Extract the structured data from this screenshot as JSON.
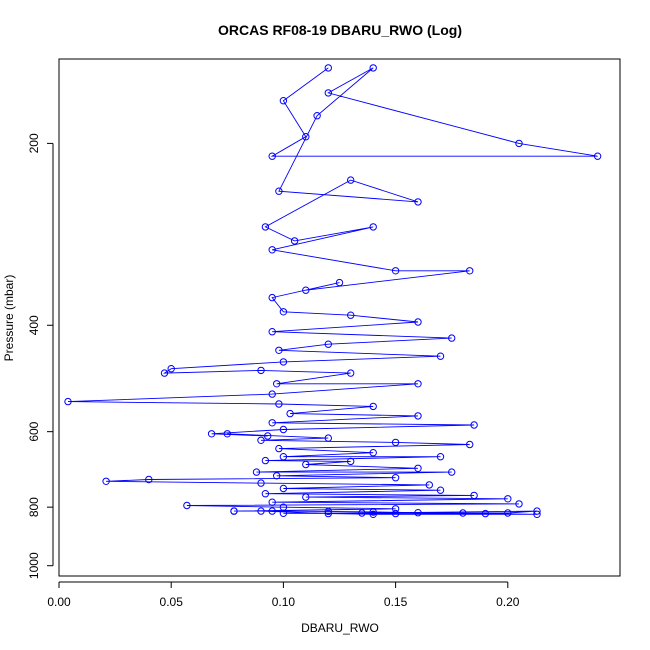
{
  "chart_data": {
    "type": "line",
    "title": "ORCAS RF08-19 DBARU_RWO (Log)",
    "xlabel": "DBARU_RWO",
    "ylabel": "Pressure (mbar)",
    "xlim": [
      0.0,
      0.25
    ],
    "ylim": [
      1040,
      145
    ],
    "y_inverted": true,
    "y_scale": "log",
    "grid": false,
    "legend": "none",
    "marker": "open-circle",
    "series_color": "#0000ff",
    "xticks": [
      0.0,
      0.05,
      0.1,
      0.15,
      0.2
    ],
    "xtick_labels": [
      "0.00",
      "0.05",
      "0.10",
      "0.15",
      "0.20"
    ],
    "yticks": [
      200,
      400,
      600,
      800,
      1000
    ],
    "ytick_labels": [
      "200",
      "400",
      "600",
      "800",
      "1000"
    ],
    "series": [
      {
        "values": [
          [
            0.12,
            150
          ],
          [
            0.1,
            170
          ],
          [
            0.11,
            195
          ],
          [
            0.095,
            210
          ],
          [
            0.24,
            210
          ],
          [
            0.205,
            200
          ],
          [
            0.12,
            165
          ],
          [
            0.14,
            150
          ],
          [
            0.115,
            180
          ],
          [
            0.098,
            240
          ],
          [
            0.16,
            250
          ],
          [
            0.13,
            230
          ],
          [
            0.092,
            275
          ],
          [
            0.105,
            290
          ],
          [
            0.14,
            275
          ],
          [
            0.095,
            300
          ],
          [
            0.15,
            325
          ],
          [
            0.183,
            325
          ],
          [
            0.11,
            350
          ],
          [
            0.125,
            340
          ],
          [
            0.095,
            360
          ],
          [
            0.1,
            380
          ],
          [
            0.13,
            385
          ],
          [
            0.16,
            395
          ],
          [
            0.095,
            410
          ],
          [
            0.175,
            420
          ],
          [
            0.12,
            430
          ],
          [
            0.098,
            440
          ],
          [
            0.17,
            450
          ],
          [
            0.1,
            460
          ],
          [
            0.05,
            472
          ],
          [
            0.047,
            480
          ],
          [
            0.09,
            475
          ],
          [
            0.13,
            480
          ],
          [
            0.097,
            500
          ],
          [
            0.16,
            500
          ],
          [
            0.095,
            520
          ],
          [
            0.004,
            535
          ],
          [
            0.098,
            540
          ],
          [
            0.14,
            545
          ],
          [
            0.103,
            560
          ],
          [
            0.16,
            565
          ],
          [
            0.095,
            580
          ],
          [
            0.185,
            585
          ],
          [
            0.1,
            595
          ],
          [
            0.068,
            605
          ],
          [
            0.093,
            610
          ],
          [
            0.075,
            605
          ],
          [
            0.12,
            615
          ],
          [
            0.09,
            620
          ],
          [
            0.15,
            625
          ],
          [
            0.183,
            630
          ],
          [
            0.098,
            640
          ],
          [
            0.14,
            650
          ],
          [
            0.1,
            660
          ],
          [
            0.17,
            660
          ],
          [
            0.092,
            670
          ],
          [
            0.13,
            672
          ],
          [
            0.11,
            680
          ],
          [
            0.16,
            690
          ],
          [
            0.088,
            700
          ],
          [
            0.175,
            700
          ],
          [
            0.097,
            710
          ],
          [
            0.15,
            715
          ],
          [
            0.04,
            720
          ],
          [
            0.021,
            725
          ],
          [
            0.09,
            730
          ],
          [
            0.165,
            735
          ],
          [
            0.1,
            745
          ],
          [
            0.17,
            750
          ],
          [
            0.092,
            760
          ],
          [
            0.185,
            765
          ],
          [
            0.11,
            770
          ],
          [
            0.2,
            775
          ],
          [
            0.095,
            785
          ],
          [
            0.205,
            790
          ],
          [
            0.057,
            795
          ],
          [
            0.1,
            800
          ],
          [
            0.15,
            805
          ],
          [
            0.078,
            812
          ],
          [
            0.095,
            812
          ],
          [
            0.12,
            813
          ],
          [
            0.14,
            815
          ],
          [
            0.16,
            817
          ],
          [
            0.18,
            818
          ],
          [
            0.2,
            818
          ],
          [
            0.213,
            812
          ],
          [
            0.135,
            818
          ],
          [
            0.1,
            819
          ],
          [
            0.15,
            820
          ],
          [
            0.19,
            820
          ],
          [
            0.213,
            822
          ],
          [
            0.14,
            822
          ],
          [
            0.12,
            820
          ],
          [
            0.09,
            812
          ],
          [
            0.078,
            812
          ]
        ]
      }
    ]
  }
}
